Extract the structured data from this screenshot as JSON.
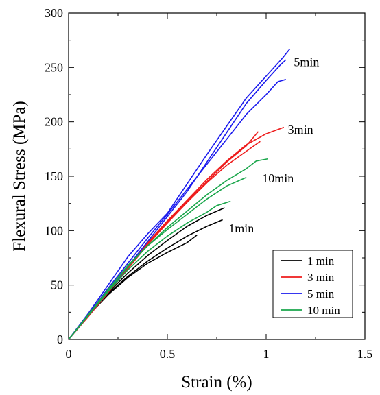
{
  "chart_data": {
    "type": "line",
    "xlabel": "Strain (%)",
    "ylabel": "Flexural Stress (MPa)",
    "xlim": [
      0,
      1.5
    ],
    "ylim": [
      0,
      300
    ],
    "x_ticks": [
      "0",
      "0.5",
      "1",
      "1.5"
    ],
    "y_ticks": [
      "0",
      "50",
      "100",
      "150",
      "200",
      "250",
      "300"
    ],
    "grid": false,
    "legend_position": "bottom-right",
    "legend": [
      {
        "label": "1 min",
        "color": "#000000"
      },
      {
        "label": "3 min",
        "color": "#ee1c1c"
      },
      {
        "label": "5 min",
        "color": "#1a1aee"
      },
      {
        "label": "10 min",
        "color": "#1aa64b"
      }
    ],
    "annotations": [
      {
        "text": "5min",
        "x": 1.14,
        "y": 255
      },
      {
        "text": "3min",
        "x": 1.11,
        "y": 193
      },
      {
        "text": "10min",
        "x": 0.98,
        "y": 148
      },
      {
        "text": "1min",
        "x": 0.81,
        "y": 102
      }
    ],
    "groups": [
      {
        "name": "1 min",
        "color": "#000000",
        "curves": [
          [
            [
              0,
              0
            ],
            [
              0.1,
              22
            ],
            [
              0.2,
              42
            ],
            [
              0.3,
              58
            ],
            [
              0.4,
              72
            ],
            [
              0.5,
              84
            ],
            [
              0.6,
              95
            ],
            [
              0.7,
              104
            ],
            [
              0.78,
              110
            ]
          ],
          [
            [
              0,
              0
            ],
            [
              0.1,
              23
            ],
            [
              0.2,
              43
            ],
            [
              0.3,
              61
            ],
            [
              0.4,
              77
            ],
            [
              0.5,
              91
            ],
            [
              0.6,
              104
            ],
            [
              0.7,
              114
            ],
            [
              0.79,
              121
            ]
          ],
          [
            [
              0,
              0
            ],
            [
              0.1,
              22
            ],
            [
              0.2,
              41
            ],
            [
              0.3,
              57
            ],
            [
              0.4,
              70
            ],
            [
              0.5,
              80
            ],
            [
              0.6,
              89
            ],
            [
              0.65,
              96
            ]
          ]
        ]
      },
      {
        "name": "3 min",
        "color": "#ee1c1c",
        "curves": [
          [
            [
              0,
              0
            ],
            [
              0.1,
              22
            ],
            [
              0.2,
              44
            ],
            [
              0.3,
              66
            ],
            [
              0.4,
              88
            ],
            [
              0.5,
              108
            ],
            [
              0.6,
              127
            ],
            [
              0.7,
              145
            ],
            [
              0.8,
              163
            ],
            [
              0.9,
              178
            ],
            [
              0.96,
              191
            ]
          ],
          [
            [
              0,
              0
            ],
            [
              0.1,
              21
            ],
            [
              0.2,
              43
            ],
            [
              0.3,
              65
            ],
            [
              0.4,
              87
            ],
            [
              0.5,
              107
            ],
            [
              0.6,
              126
            ],
            [
              0.7,
              144
            ],
            [
              0.8,
              160
            ],
            [
              0.9,
              173
            ],
            [
              0.97,
              182
            ]
          ],
          [
            [
              0,
              0
            ],
            [
              0.1,
              22
            ],
            [
              0.2,
              45
            ],
            [
              0.3,
              67
            ],
            [
              0.4,
              89
            ],
            [
              0.5,
              109
            ],
            [
              0.6,
              128
            ],
            [
              0.7,
              147
            ],
            [
              0.8,
              164
            ],
            [
              0.9,
              179
            ],
            [
              1.0,
              189
            ],
            [
              1.09,
              195
            ]
          ]
        ]
      },
      {
        "name": "5 min",
        "color": "#1a1aee",
        "curves": [
          [
            [
              0,
              0
            ],
            [
              0.1,
              24
            ],
            [
              0.2,
              50
            ],
            [
              0.3,
              76
            ],
            [
              0.4,
              97
            ],
            [
              0.5,
              116
            ],
            [
              0.6,
              143
            ],
            [
              0.7,
              170
            ],
            [
              0.8,
              196
            ],
            [
              0.9,
              222
            ],
            [
              1.0,
              242
            ],
            [
              1.08,
              258
            ],
            [
              1.12,
              267
            ]
          ],
          [
            [
              0,
              0
            ],
            [
              0.1,
              23
            ],
            [
              0.2,
              47
            ],
            [
              0.3,
              70
            ],
            [
              0.4,
              93
            ],
            [
              0.5,
              115
            ],
            [
              0.6,
              138
            ],
            [
              0.7,
              161
            ],
            [
              0.8,
              184
            ],
            [
              0.9,
              207
            ],
            [
              1.0,
              225
            ],
            [
              1.06,
              237
            ],
            [
              1.1,
              239
            ]
          ],
          [
            [
              0,
              0
            ],
            [
              0.1,
              22
            ],
            [
              0.2,
              44
            ],
            [
              0.3,
              67
            ],
            [
              0.4,
              90
            ],
            [
              0.5,
              113
            ],
            [
              0.6,
              136
            ],
            [
              0.7,
              163
            ],
            [
              0.8,
              190
            ],
            [
              0.9,
              217
            ],
            [
              1.0,
              238
            ],
            [
              1.07,
              252
            ],
            [
              1.1,
              257
            ]
          ]
        ]
      },
      {
        "name": "10 min",
        "color": "#1aa64b",
        "curves": [
          [
            [
              0,
              0
            ],
            [
              0.1,
              22
            ],
            [
              0.2,
              45
            ],
            [
              0.3,
              67
            ],
            [
              0.4,
              86
            ],
            [
              0.5,
              103
            ],
            [
              0.6,
              118
            ],
            [
              0.7,
              133
            ],
            [
              0.8,
              146
            ],
            [
              0.9,
              157
            ],
            [
              0.95,
              164
            ],
            [
              1.01,
              166
            ]
          ],
          [
            [
              0,
              0
            ],
            [
              0.1,
              23
            ],
            [
              0.2,
              46
            ],
            [
              0.3,
              68
            ],
            [
              0.4,
              86
            ],
            [
              0.5,
              101
            ],
            [
              0.6,
              115
            ],
            [
              0.7,
              129
            ],
            [
              0.8,
              141
            ],
            [
              0.9,
              149
            ]
          ],
          [
            [
              0,
              0
            ],
            [
              0.1,
              22
            ],
            [
              0.2,
              44
            ],
            [
              0.3,
              64
            ],
            [
              0.4,
              81
            ],
            [
              0.5,
              95
            ],
            [
              0.6,
              107
            ],
            [
              0.7,
              117
            ],
            [
              0.75,
              123
            ],
            [
              0.82,
              127
            ]
          ]
        ]
      }
    ]
  }
}
